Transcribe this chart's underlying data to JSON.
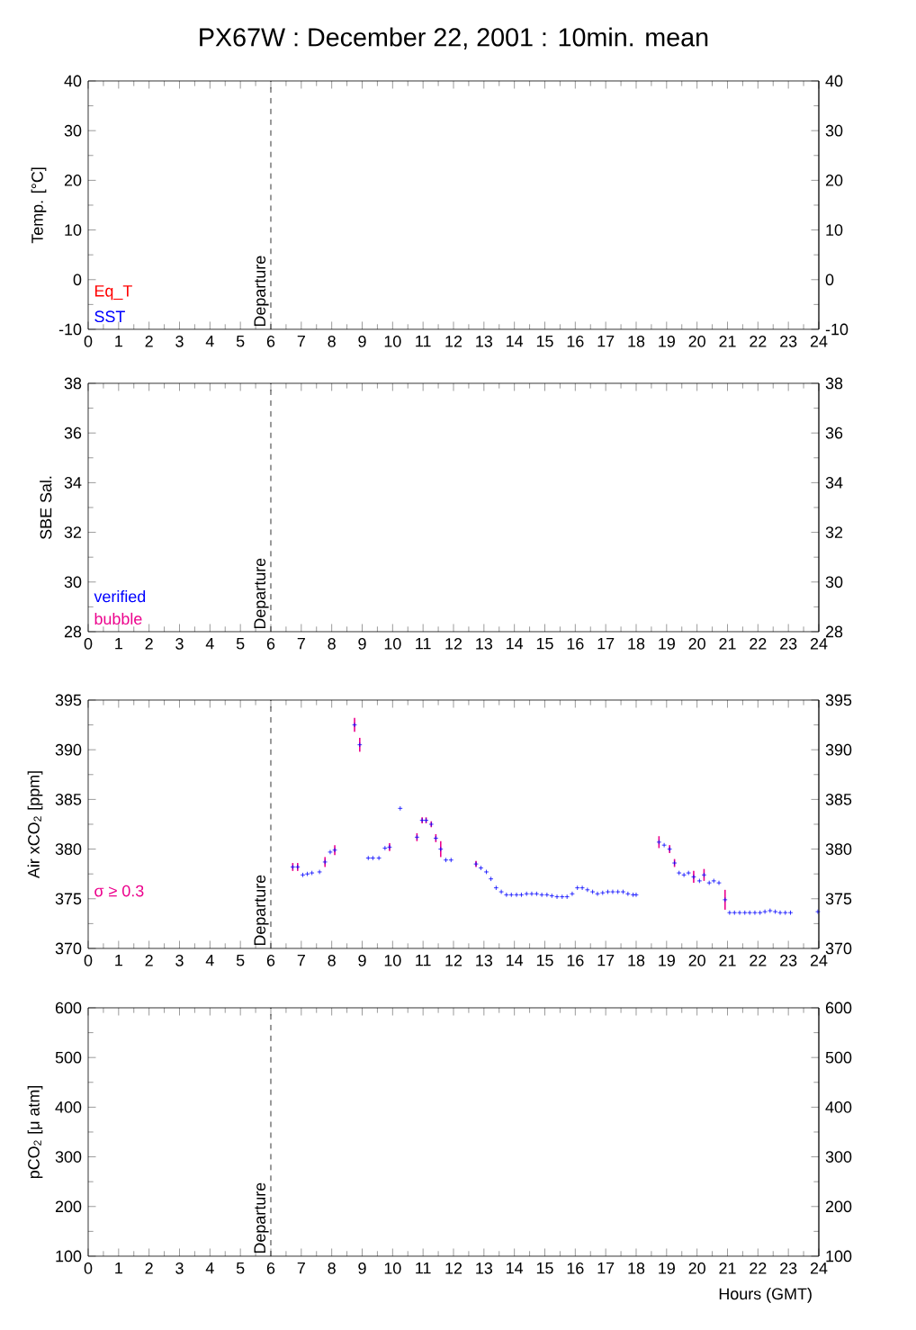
{
  "chart_data": [
    {
      "type": "line",
      "title": "PX67W : December 22, 2001 : 10min. mean",
      "ylabel": "Temp. [°C]",
      "xlim": [
        0,
        24
      ],
      "xticks": [
        0,
        1,
        2,
        3,
        4,
        5,
        6,
        7,
        8,
        9,
        10,
        11,
        12,
        13,
        14,
        15,
        16,
        17,
        18,
        19,
        20,
        21,
        22,
        23,
        24
      ],
      "ylim": [
        -10,
        40
      ],
      "yticks": [
        -10,
        0,
        10,
        20,
        30,
        40
      ],
      "y2lim": [
        -10,
        40
      ],
      "y2ticks": [
        -10,
        0,
        10,
        20,
        30,
        40
      ],
      "annotations": [
        "Eq_T",
        "SST"
      ],
      "ref_lines": [
        {
          "axis": "x",
          "value": 6,
          "label": "Departure",
          "line_style": "dashed"
        }
      ]
    },
    {
      "type": "line",
      "ylabel": "SBE Sal.",
      "xlim": [
        0,
        24
      ],
      "xticks": [
        0,
        1,
        2,
        3,
        4,
        5,
        6,
        7,
        8,
        9,
        10,
        11,
        12,
        13,
        14,
        15,
        16,
        17,
        18,
        19,
        20,
        21,
        22,
        23,
        24
      ],
      "ylim": [
        28,
        38
      ],
      "yticks": [
        28,
        30,
        32,
        34,
        36,
        38
      ],
      "y2lim": [
        28,
        38
      ],
      "y2ticks": [
        28,
        30,
        32,
        34,
        36,
        38
      ],
      "annotations": [
        "verified",
        "bubble"
      ],
      "ref_lines": [
        {
          "axis": "x",
          "value": 6,
          "label": "Departure",
          "line_style": "dashed"
        }
      ]
    },
    {
      "type": "scatter",
      "ylabel": "Air xCO$_{2}$ [ppm]",
      "xlim": [
        0,
        24
      ],
      "xticks": [
        0,
        1,
        2,
        3,
        4,
        5,
        6,
        7,
        8,
        9,
        10,
        11,
        12,
        13,
        14,
        15,
        16,
        17,
        18,
        19,
        20,
        21,
        22,
        23,
        24
      ],
      "ylim": [
        370,
        395
      ],
      "yticks": [
        370,
        375,
        380,
        385,
        390,
        395
      ],
      "y2lim": [
        370,
        395
      ],
      "y2ticks": [
        370,
        375,
        380,
        385,
        390,
        395
      ],
      "marker": "cross",
      "series": [
        {
          "color": "#0000ff",
          "x": [
            6.72,
            6.88,
            7.05,
            7.2,
            7.35,
            7.6,
            7.78,
            7.95,
            8.1,
            8.75,
            8.92,
            9.2,
            9.35,
            9.55,
            9.75,
            9.9,
            10.25,
            10.8,
            10.97,
            11.1,
            11.27,
            11.42,
            11.58,
            11.75,
            11.92,
            12.74,
            12.9,
            13.08,
            13.23,
            13.4,
            13.57,
            13.74,
            13.9,
            14.07,
            14.23,
            14.4,
            14.57,
            14.73,
            14.9,
            15.07,
            15.23,
            15.4,
            15.57,
            15.73,
            15.9,
            16.07,
            16.23,
            16.4,
            16.57,
            16.73,
            16.9,
            17.07,
            17.23,
            17.4,
            17.57,
            17.73,
            17.9,
            18.0,
            18.75,
            18.92,
            19.1,
            19.26,
            19.41,
            19.57,
            19.72,
            19.89,
            20.08,
            20.23,
            20.4,
            20.55,
            20.72,
            20.92,
            21.07,
            21.23,
            21.4,
            21.57,
            21.73,
            21.9,
            22.07,
            22.23,
            22.4,
            22.57,
            22.73,
            22.9,
            23.07,
            23.97
          ],
          "values": [
            378.2,
            378.2,
            377.4,
            377.5,
            377.6,
            377.7,
            378.7,
            379.7,
            379.9,
            392.5,
            390.5,
            379.1,
            379.1,
            379.1,
            380.1,
            380.2,
            384.1,
            381.2,
            382.9,
            382.9,
            382.5,
            381.1,
            380.0,
            378.9,
            378.9,
            378.5,
            378.1,
            377.7,
            377.0,
            376.1,
            375.7,
            375.4,
            375.4,
            375.4,
            375.4,
            375.5,
            375.5,
            375.5,
            375.4,
            375.4,
            375.3,
            375.2,
            375.2,
            375.2,
            375.5,
            376.1,
            376.1,
            375.9,
            375.7,
            375.5,
            375.6,
            375.7,
            375.7,
            375.7,
            375.7,
            375.5,
            375.4,
            375.4,
            380.7,
            380.4,
            380.0,
            378.6,
            377.6,
            377.4,
            377.6,
            377.2,
            376.8,
            377.4,
            376.6,
            376.8,
            376.6,
            374.9,
            373.6,
            373.6,
            373.6,
            373.6,
            373.6,
            373.6,
            373.6,
            373.7,
            373.8,
            373.7,
            373.6,
            373.6,
            373.6,
            373.7
          ],
          "errors": [
            0.4,
            0.4,
            null,
            null,
            null,
            null,
            0.5,
            null,
            0.5,
            0.7,
            0.7,
            null,
            null,
            null,
            null,
            0.4,
            null,
            0.4,
            0.3,
            0.3,
            0.3,
            0.4,
            0.8,
            null,
            null,
            0.3,
            null,
            null,
            null,
            null,
            null,
            null,
            null,
            null,
            null,
            null,
            null,
            null,
            null,
            null,
            null,
            null,
            null,
            null,
            null,
            null,
            null,
            null,
            null,
            null,
            null,
            null,
            null,
            null,
            null,
            null,
            null,
            null,
            0.6,
            null,
            0.4,
            0.4,
            null,
            null,
            null,
            0.6,
            null,
            0.6,
            null,
            null,
            null,
            1.0,
            null,
            null,
            null,
            null,
            null,
            null,
            null,
            null,
            null,
            null,
            null,
            null,
            null,
            null
          ]
        }
      ],
      "annotations": [
        "σ ≥ 0.3"
      ],
      "ref_lines": [
        {
          "axis": "x",
          "value": 6,
          "label": "Departure",
          "line_style": "dashed"
        }
      ]
    },
    {
      "type": "line",
      "ylabel": "pCO$_{2}$ [μ atm]",
      "xlabel": "Hours (GMT)",
      "xlim": [
        0,
        24
      ],
      "xticks": [
        0,
        1,
        2,
        3,
        4,
        5,
        6,
        7,
        8,
        9,
        10,
        11,
        12,
        13,
        14,
        15,
        16,
        17,
        18,
        19,
        20,
        21,
        22,
        23,
        24
      ],
      "ylim": [
        100,
        600
      ],
      "yticks": [
        100,
        200,
        300,
        400,
        500,
        600
      ],
      "y2lim": [
        100,
        600
      ],
      "y2ticks": [
        100,
        200,
        300,
        400,
        500,
        600
      ],
      "ref_lines": [
        {
          "axis": "x",
          "value": 6,
          "label": "Departure",
          "line_style": "dashed"
        }
      ]
    }
  ]
}
